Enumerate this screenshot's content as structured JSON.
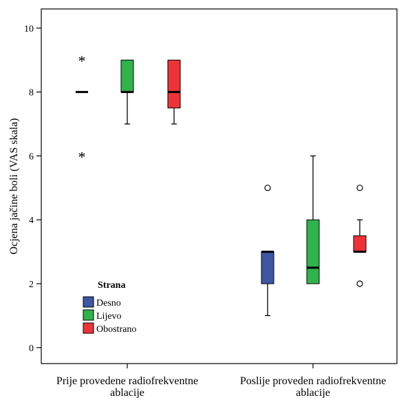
{
  "chart_data": {
    "type": "boxplot",
    "ylabel": "Ocjena jačine boli (VAS skala)",
    "ylim": [
      -0.5,
      10.6
    ],
    "yticks": [
      0,
      2,
      4,
      6,
      8,
      10
    ],
    "grid": false,
    "groups": [
      {
        "label_lines": [
          "Prije provedene radiofrekventne",
          "ablacije"
        ]
      },
      {
        "label_lines": [
          "Poslije proveden radiofrekventne",
          "ablacije"
        ]
      }
    ],
    "legend": {
      "title": "Strana",
      "placement": "lower-left",
      "entries": [
        "Desno",
        "Lijevo",
        "Obostrano"
      ]
    },
    "series": [
      {
        "name": "Desno",
        "color": "#3d57a4",
        "boxes": [
          {
            "q1": 8,
            "median": 8,
            "q3": 8,
            "whisker_low": 8,
            "whisker_high": 8,
            "extremes": [
              9,
              6
            ],
            "outliers": []
          },
          {
            "q1": 2,
            "median": 3,
            "q3": 3,
            "whisker_low": 1,
            "whisker_high": 3,
            "extremes": [],
            "outliers": [
              5
            ]
          }
        ]
      },
      {
        "name": "Lijevo",
        "color": "#2fb34a",
        "boxes": [
          {
            "q1": 8,
            "median": 8,
            "q3": 9,
            "whisker_low": 7,
            "whisker_high": 9,
            "extremes": [],
            "outliers": []
          },
          {
            "q1": 2,
            "median": 2.5,
            "q3": 4,
            "whisker_low": 2,
            "whisker_high": 6,
            "extremes": [],
            "outliers": []
          }
        ]
      },
      {
        "name": "Obostrano",
        "color": "#ee3338",
        "boxes": [
          {
            "q1": 7.5,
            "median": 8,
            "q3": 9,
            "whisker_low": 7,
            "whisker_high": 9,
            "extremes": [],
            "outliers": []
          },
          {
            "q1": 3,
            "median": 3,
            "q3": 3.5,
            "whisker_low": 3,
            "whisker_high": 4,
            "extremes": [],
            "outliers": [
              5,
              2
            ]
          }
        ]
      }
    ]
  }
}
